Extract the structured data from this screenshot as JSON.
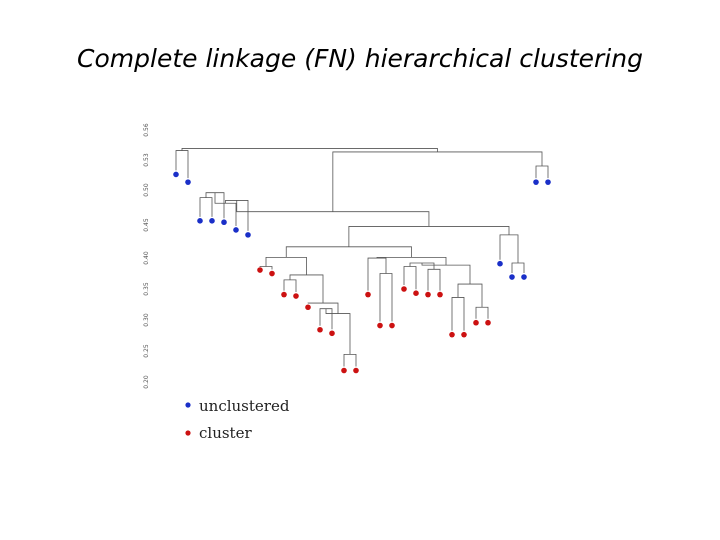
{
  "title": "Complete linkage (FN) hierarchical clustering",
  "colors": {
    "unclustered": "#1a2fc8",
    "cluster": "#cc1111",
    "link": "#555555"
  },
  "chart_data": {
    "type": "dendrogram",
    "yaxis_ticks": [
      "0.20",
      "0.25",
      "0.30",
      "0.35",
      "0.40",
      "0.45",
      "0.50",
      "0.53",
      "0.56"
    ],
    "legend": [
      {
        "label": "unclustered",
        "class": "unclustered"
      },
      {
        "label": "cluster",
        "class": "cluster"
      }
    ],
    "leaves": [
      {
        "id": "L1",
        "class": "unclustered",
        "height": 0.511
      },
      {
        "id": "L2",
        "class": "unclustered",
        "height": 0.5
      },
      {
        "id": "L3",
        "class": "unclustered",
        "height": 0.445
      },
      {
        "id": "L4",
        "class": "unclustered",
        "height": 0.445
      },
      {
        "id": "L5",
        "class": "unclustered",
        "height": 0.443
      },
      {
        "id": "L6",
        "class": "unclustered",
        "height": 0.432
      },
      {
        "id": "L7",
        "class": "unclustered",
        "height": 0.425
      },
      {
        "id": "L8",
        "class": "cluster",
        "height": 0.375
      },
      {
        "id": "L9",
        "class": "cluster",
        "height": 0.37
      },
      {
        "id": "L10",
        "class": "cluster",
        "height": 0.34
      },
      {
        "id": "L11",
        "class": "cluster",
        "height": 0.338
      },
      {
        "id": "L12",
        "class": "cluster",
        "height": 0.322
      },
      {
        "id": "L13",
        "class": "cluster",
        "height": 0.29
      },
      {
        "id": "L14",
        "class": "cluster",
        "height": 0.285
      },
      {
        "id": "L15",
        "class": "cluster",
        "height": 0.232
      },
      {
        "id": "L16",
        "class": "cluster",
        "height": 0.232
      },
      {
        "id": "L17",
        "class": "cluster",
        "height": 0.34
      },
      {
        "id": "L18",
        "class": "cluster",
        "height": 0.296
      },
      {
        "id": "L19",
        "class": "cluster",
        "height": 0.296
      },
      {
        "id": "L20",
        "class": "cluster",
        "height": 0.348
      },
      {
        "id": "L21",
        "class": "cluster",
        "height": 0.342
      },
      {
        "id": "L22",
        "class": "cluster",
        "height": 0.34
      },
      {
        "id": "L23",
        "class": "cluster",
        "height": 0.34
      },
      {
        "id": "L24",
        "class": "cluster",
        "height": 0.283
      },
      {
        "id": "L25",
        "class": "cluster",
        "height": 0.283
      },
      {
        "id": "L26",
        "class": "cluster",
        "height": 0.3
      },
      {
        "id": "L27",
        "class": "cluster",
        "height": 0.3
      },
      {
        "id": "L28",
        "class": "unclustered",
        "height": 0.384
      },
      {
        "id": "L29",
        "class": "unclustered",
        "height": 0.365
      },
      {
        "id": "L30",
        "class": "unclustered",
        "height": 0.365
      },
      {
        "id": "L31",
        "class": "unclustered",
        "height": 0.5
      },
      {
        "id": "L32",
        "class": "unclustered",
        "height": 0.5
      }
    ],
    "merges": [
      {
        "a": "L1",
        "b": "L2",
        "h": 0.545,
        "id": "N1"
      },
      {
        "a": "L3",
        "b": "L4",
        "h": 0.478,
        "id": "N2"
      },
      {
        "a": "N2",
        "b": "L5",
        "h": 0.485,
        "id": "N3"
      },
      {
        "a": "N3",
        "b": "L6",
        "h": 0.47,
        "id": "N4"
      },
      {
        "a": "N4",
        "b": "L7",
        "h": 0.474,
        "id": "N5"
      },
      {
        "a": "L15",
        "b": "L16",
        "h": 0.255,
        "id": "N6"
      },
      {
        "a": "L13",
        "b": "L14",
        "h": 0.32,
        "id": "N7"
      },
      {
        "a": "N7",
        "b": "N6",
        "h": 0.313,
        "id": "N8"
      },
      {
        "a": "L12",
        "b": "N8",
        "h": 0.328,
        "id": "N9"
      },
      {
        "a": "L10",
        "b": "L11",
        "h": 0.361,
        "id": "N10"
      },
      {
        "a": "N10",
        "b": "N9",
        "h": 0.368,
        "id": "N11"
      },
      {
        "a": "L8",
        "b": "L9",
        "h": 0.38,
        "id": "N12"
      },
      {
        "a": "N12",
        "b": "N11",
        "h": 0.393,
        "id": "N13"
      },
      {
        "a": "L18",
        "b": "L19",
        "h": 0.37,
        "id": "N14"
      },
      {
        "a": "L17",
        "b": "N14",
        "h": 0.392,
        "id": "N15"
      },
      {
        "a": "L20",
        "b": "L21",
        "h": 0.38,
        "id": "N16"
      },
      {
        "a": "L22",
        "b": "L23",
        "h": 0.376,
        "id": "N17"
      },
      {
        "a": "N16",
        "b": "N17",
        "h": 0.385,
        "id": "N18"
      },
      {
        "a": "L26",
        "b": "L27",
        "h": 0.322,
        "id": "N19"
      },
      {
        "a": "L24",
        "b": "L25",
        "h": 0.336,
        "id": "N20"
      },
      {
        "a": "N20",
        "b": "N19",
        "h": 0.355,
        "id": "N21"
      },
      {
        "a": "N18",
        "b": "N21",
        "h": 0.382,
        "id": "N22"
      },
      {
        "a": "N15",
        "b": "N22",
        "h": 0.393,
        "id": "N23"
      },
      {
        "a": "N13",
        "b": "N23",
        "h": 0.408,
        "id": "N24"
      },
      {
        "a": "L29",
        "b": "L30",
        "h": 0.385,
        "id": "N25"
      },
      {
        "a": "L28",
        "b": "N25",
        "h": 0.425,
        "id": "N26"
      },
      {
        "a": "N24",
        "b": "N26",
        "h": 0.437,
        "id": "N27"
      },
      {
        "a": "N5",
        "b": "N27",
        "h": 0.458,
        "id": "N28"
      },
      {
        "a": "L31",
        "b": "L32",
        "h": 0.523,
        "id": "N29"
      },
      {
        "a": "N28",
        "b": "N29",
        "h": 0.543,
        "id": "N30"
      },
      {
        "a": "N1",
        "b": "N30",
        "h": 0.548,
        "id": "N31"
      }
    ]
  }
}
